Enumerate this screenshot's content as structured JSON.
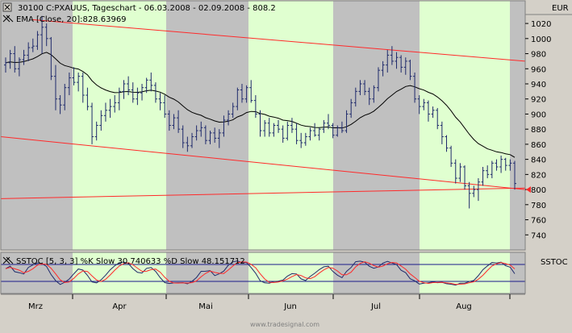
{
  "header": {
    "symbol_line": "30100  C:PXAUUS, Tageschart - 06.03.2008 - 02.09.2008 - 808.2",
    "ema_line": "EMA [Close, 20]:828.63969",
    "currency": "EUR"
  },
  "stoch": {
    "label": "SSTOC [5, 3, 3] %K Slow 30.740633 %D Slow 48.151712",
    "axis_label": "SSTOC"
  },
  "footer": {
    "watermark": "www.tradesignal.com"
  },
  "colors": {
    "band_green": "#e0ffd0",
    "band_gray": "#c0c0c0",
    "bar": "#1f2a6b",
    "ema": "#000000",
    "trendline": "#ff2a2a",
    "stoch_k": "#1f2a6b",
    "stoch_d": "#ff2a2a",
    "level_line": "#1a1a8a"
  },
  "chart_data": {
    "type": "ohlc",
    "x_axis": {
      "months": [
        "Mrz",
        "Apr",
        "Mai",
        "Jun",
        "Jul",
        "Aug"
      ]
    },
    "y_axis": {
      "min": 720,
      "max": 1050,
      "ticks": [
        1020,
        1000,
        980,
        960,
        940,
        920,
        900,
        880,
        860,
        840,
        820,
        800,
        780,
        760,
        740
      ],
      "current": 800
    },
    "ohlc": [
      [
        965,
        975,
        955,
        968
      ],
      [
        968,
        985,
        960,
        980
      ],
      [
        980,
        990,
        955,
        960
      ],
      [
        960,
        975,
        950,
        972
      ],
      [
        972,
        985,
        965,
        978
      ],
      [
        978,
        995,
        970,
        988
      ],
      [
        988,
        1000,
        982,
        990
      ],
      [
        990,
        1010,
        985,
        1005
      ],
      [
        1005,
        1030,
        980,
        1015
      ],
      [
        1015,
        1020,
        990,
        1000
      ],
      [
        1000,
        1002,
        945,
        950
      ],
      [
        950,
        965,
        905,
        920
      ],
      [
        920,
        925,
        900,
        912
      ],
      [
        912,
        940,
        905,
        935
      ],
      [
        935,
        955,
        925,
        948
      ],
      [
        948,
        962,
        938,
        942
      ],
      [
        942,
        955,
        930,
        950
      ],
      [
        950,
        955,
        915,
        925
      ],
      [
        925,
        935,
        905,
        910
      ],
      [
        910,
        915,
        860,
        870
      ],
      [
        870,
        890,
        865,
        885
      ],
      [
        885,
        905,
        878,
        898
      ],
      [
        898,
        915,
        890,
        905
      ],
      [
        905,
        920,
        895,
        910
      ],
      [
        910,
        925,
        902,
        915
      ],
      [
        915,
        935,
        905,
        930
      ],
      [
        930,
        945,
        920,
        940
      ],
      [
        940,
        950,
        925,
        932
      ],
      [
        932,
        942,
        915,
        920
      ],
      [
        920,
        935,
        912,
        928
      ],
      [
        928,
        940,
        918,
        935
      ],
      [
        935,
        948,
        928,
        945
      ],
      [
        945,
        955,
        930,
        938
      ],
      [
        938,
        942,
        915,
        920
      ],
      [
        920,
        928,
        905,
        915
      ],
      [
        915,
        925,
        895,
        900
      ],
      [
        900,
        905,
        878,
        885
      ],
      [
        885,
        900,
        880,
        895
      ],
      [
        895,
        905,
        875,
        880
      ],
      [
        880,
        885,
        855,
        862
      ],
      [
        862,
        870,
        850,
        858
      ],
      [
        858,
        875,
        855,
        870
      ],
      [
        870,
        885,
        865,
        878
      ],
      [
        878,
        890,
        870,
        882
      ],
      [
        882,
        885,
        860,
        865
      ],
      [
        865,
        878,
        860,
        875
      ],
      [
        875,
        882,
        862,
        868
      ],
      [
        868,
        880,
        855,
        875
      ],
      [
        875,
        898,
        870,
        892
      ],
      [
        892,
        905,
        885,
        900
      ],
      [
        900,
        915,
        895,
        910
      ],
      [
        910,
        935,
        905,
        932
      ],
      [
        932,
        940,
        915,
        920
      ],
      [
        920,
        938,
        915,
        935
      ],
      [
        935,
        945,
        915,
        918
      ],
      [
        918,
        925,
        895,
        900
      ],
      [
        900,
        905,
        870,
        878
      ],
      [
        878,
        892,
        870,
        888
      ],
      [
        888,
        895,
        870,
        875
      ],
      [
        875,
        888,
        870,
        885
      ],
      [
        885,
        892,
        875,
        880
      ],
      [
        880,
        885,
        862,
        868
      ],
      [
        868,
        890,
        865,
        885
      ],
      [
        885,
        895,
        875,
        880
      ],
      [
        880,
        888,
        860,
        865
      ],
      [
        865,
        875,
        855,
        862
      ],
      [
        862,
        875,
        858,
        870
      ],
      [
        870,
        882,
        865,
        878
      ],
      [
        878,
        888,
        870,
        872
      ],
      [
        872,
        882,
        865,
        880
      ],
      [
        880,
        892,
        875,
        888
      ],
      [
        888,
        900,
        880,
        885
      ],
      [
        885,
        888,
        868,
        872
      ],
      [
        872,
        885,
        870,
        882
      ],
      [
        882,
        890,
        875,
        878
      ],
      [
        878,
        905,
        875,
        900
      ],
      [
        900,
        920,
        895,
        915
      ],
      [
        915,
        935,
        910,
        930
      ],
      [
        930,
        945,
        925,
        940
      ],
      [
        940,
        945,
        925,
        930
      ],
      [
        930,
        935,
        912,
        920
      ],
      [
        920,
        938,
        915,
        935
      ],
      [
        935,
        962,
        930,
        958
      ],
      [
        958,
        970,
        950,
        965
      ],
      [
        965,
        985,
        955,
        978
      ],
      [
        978,
        990,
        965,
        970
      ],
      [
        970,
        982,
        960,
        975
      ],
      [
        975,
        978,
        955,
        962
      ],
      [
        962,
        975,
        952,
        970
      ],
      [
        970,
        972,
        945,
        950
      ],
      [
        950,
        955,
        915,
        920
      ],
      [
        920,
        925,
        900,
        910
      ],
      [
        910,
        920,
        905,
        915
      ],
      [
        915,
        918,
        890,
        900
      ],
      [
        900,
        910,
        895,
        905
      ],
      [
        905,
        908,
        880,
        885
      ],
      [
        885,
        890,
        860,
        870
      ],
      [
        870,
        872,
        850,
        855
      ],
      [
        855,
        858,
        830,
        835
      ],
      [
        835,
        840,
        808,
        815
      ],
      [
        815,
        835,
        810,
        830
      ],
      [
        830,
        832,
        800,
        805
      ],
      [
        805,
        810,
        775,
        795
      ],
      [
        795,
        805,
        790,
        800
      ],
      [
        800,
        815,
        785,
        810
      ],
      [
        810,
        830,
        805,
        825
      ],
      [
        825,
        832,
        815,
        820
      ],
      [
        820,
        838,
        815,
        835
      ],
      [
        835,
        840,
        825,
        830
      ],
      [
        830,
        845,
        822,
        840
      ],
      [
        840,
        842,
        825,
        832
      ],
      [
        832,
        840,
        825,
        835
      ],
      [
        835,
        838,
        800,
        808
      ]
    ],
    "stochastic": {
      "upper_level": 80,
      "lower_level": 20,
      "k": [
        30.740633
      ],
      "d": [
        48.151712
      ]
    }
  }
}
